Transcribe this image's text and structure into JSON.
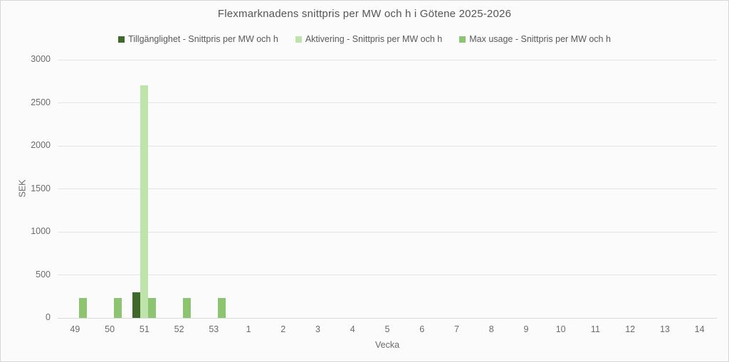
{
  "chart": {
    "title": "Flexmarknadens snittpris per MW och h i Götene 2025-2026",
    "x_axis_title": "Vecka",
    "y_axis_title": "SEK"
  },
  "legend": {
    "items": [
      {
        "label": "Tillgänglighet - Snittpris per MW och h",
        "color": "#41682b"
      },
      {
        "label": "Aktivering - Snittpris per MW och h",
        "color": "#bee3ab"
      },
      {
        "label": "Max usage - Snittpris per MW och h",
        "color": "#8dc470"
      }
    ]
  },
  "chart_data": {
    "type": "bar",
    "title": "Flexmarknadens snittpris per MW och h i Götene 2025-2026",
    "xlabel": "Vecka",
    "ylabel": "SEK",
    "ylim": [
      0,
      3000
    ],
    "ytick_step": 500,
    "grid": true,
    "legend_position": "top",
    "categories": [
      "49",
      "50",
      "51",
      "52",
      "53",
      "1",
      "2",
      "3",
      "4",
      "5",
      "6",
      "7",
      "8",
      "9",
      "10",
      "11",
      "12",
      "13",
      "14"
    ],
    "series": [
      {
        "name": "Tillgänglighet - Snittpris per MW och h",
        "color": "#41682b",
        "values": [
          0,
          0,
          300,
          0,
          0,
          0,
          0,
          0,
          0,
          0,
          0,
          0,
          0,
          0,
          0,
          0,
          0,
          0,
          0
        ]
      },
      {
        "name": "Aktivering - Snittpris per MW och h",
        "color": "#bee3ab",
        "values": [
          0,
          0,
          2700,
          0,
          0,
          0,
          0,
          0,
          0,
          0,
          0,
          0,
          0,
          0,
          0,
          0,
          0,
          0,
          0
        ]
      },
      {
        "name": "Max usage - Snittpris per MW och h",
        "color": "#8dc470",
        "values": [
          230,
          230,
          230,
          230,
          230,
          0,
          0,
          0,
          0,
          0,
          0,
          0,
          0,
          0,
          0,
          0,
          0,
          0,
          0
        ]
      }
    ]
  },
  "style": {
    "background": "#fbfbfb",
    "border_color": "#d6d6d6",
    "gridline_color": "#e4e4e4",
    "text_color": "#595959"
  }
}
